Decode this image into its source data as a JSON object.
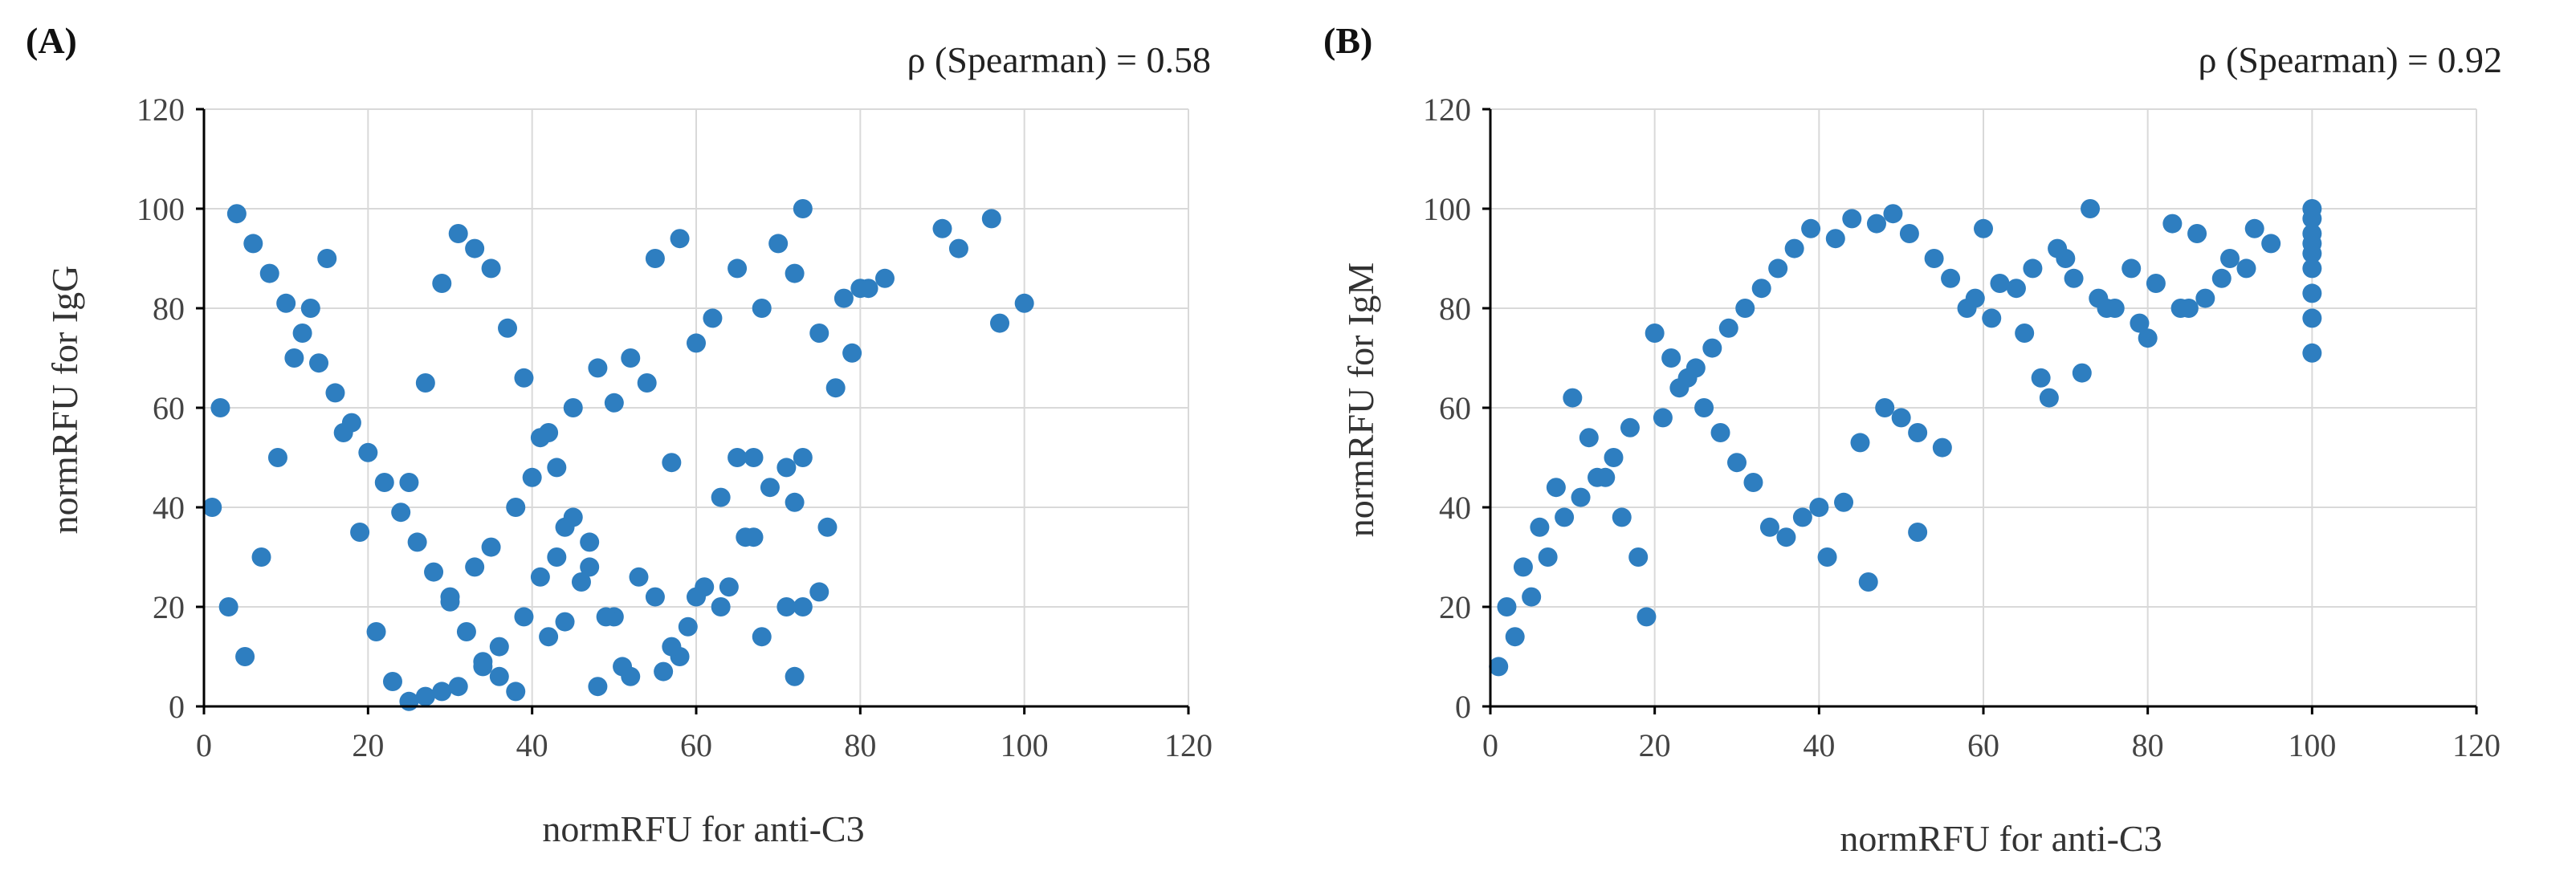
{
  "chart_data": [
    {
      "type": "scatter",
      "panel_label": "(A)",
      "annotation": "ρ (Spearman) = 0.58",
      "xlabel": "normRFU for anti-C3",
      "ylabel": "normRFU for IgG",
      "xlim": [
        0,
        120
      ],
      "ylim": [
        0,
        120
      ],
      "xticks": [
        "0",
        "20",
        "40",
        "60",
        "80",
        "100",
        "120"
      ],
      "yticks": [
        "0",
        "20",
        "40",
        "60",
        "80",
        "100",
        "120"
      ],
      "grid": true,
      "marker_color": "#2E7EC0",
      "points": {
        "x": [
          97,
          100,
          92,
          90,
          96,
          83,
          80,
          78,
          72,
          68,
          75,
          62,
          65,
          70,
          73,
          58,
          55,
          52,
          60,
          48,
          45,
          42,
          40,
          38,
          35,
          33,
          30,
          50,
          54,
          57,
          63,
          67,
          72,
          76,
          44,
          47,
          43,
          41,
          39,
          36,
          34,
          31,
          29,
          27,
          25,
          72,
          73,
          71,
          68,
          66,
          64,
          60,
          58,
          56,
          52,
          50,
          48,
          46,
          44,
          42,
          38,
          36,
          34,
          32,
          30,
          28,
          26,
          24,
          22,
          20,
          18,
          16,
          14,
          12,
          10,
          8,
          6,
          4,
          2,
          1,
          3,
          5,
          7,
          9,
          11,
          13,
          15,
          17,
          19,
          21,
          23,
          25,
          27,
          29,
          31,
          33,
          35,
          37,
          39,
          41,
          43,
          45,
          47,
          49,
          51,
          53,
          55,
          57,
          59,
          61,
          63,
          65,
          67,
          69,
          71,
          73,
          75,
          77,
          79,
          81
        ],
        "y": [
          77,
          81,
          92,
          96,
          98,
          86,
          84,
          82,
          87,
          80,
          75,
          78,
          88,
          93,
          100,
          94,
          90,
          70,
          73,
          68,
          60,
          55,
          46,
          40,
          32,
          28,
          22,
          61,
          65,
          49,
          42,
          50,
          41,
          36,
          36,
          33,
          30,
          26,
          18,
          12,
          8,
          4,
          3,
          2,
          1,
          6,
          50,
          20,
          14,
          34,
          24,
          22,
          10,
          7,
          6,
          18,
          4,
          25,
          17,
          14,
          3,
          6,
          9,
          15,
          21,
          27,
          33,
          39,
          45,
          51,
          57,
          63,
          69,
          75,
          81,
          87,
          93,
          99,
          60,
          40,
          20,
          10,
          30,
          50,
          70,
          80,
          90,
          55,
          35,
          15,
          5,
          45,
          65,
          85,
          95,
          92,
          88,
          76,
          66,
          54,
          48,
          38,
          28,
          18,
          8,
          26,
          22,
          12,
          16,
          24,
          20,
          50,
          34,
          44,
          48,
          20,
          23,
          64,
          71,
          84
        ]
      }
    },
    {
      "type": "scatter",
      "panel_label": "(B)",
      "annotation": "ρ (Spearman) = 0.92",
      "xlabel": "normRFU for anti-C3",
      "ylabel": "normRFU for IgM",
      "xlim": [
        0,
        120
      ],
      "ylim": [
        0,
        120
      ],
      "xticks": [
        "0",
        "20",
        "40",
        "60",
        "80",
        "100",
        "120"
      ],
      "yticks": [
        "0",
        "20",
        "40",
        "60",
        "80",
        "100",
        "120"
      ],
      "grid": true,
      "marker_color": "#2E7EC0",
      "points": {
        "x": [
          100,
          100,
          100,
          100,
          100,
          100,
          100,
          100,
          100,
          95,
          93,
          90,
          86,
          85,
          83,
          80,
          78,
          75,
          73,
          72,
          70,
          68,
          67,
          65,
          62,
          60,
          58,
          55,
          52,
          50,
          48,
          45,
          43,
          41,
          46,
          52,
          40,
          38,
          36,
          34,
          32,
          30,
          28,
          26,
          24,
          22,
          20,
          19,
          18,
          16,
          14,
          12,
          10,
          8,
          6,
          4,
          2,
          1,
          3,
          5,
          7,
          9,
          11,
          13,
          15,
          17,
          21,
          23,
          25,
          27,
          29,
          31,
          33,
          35,
          37,
          39,
          42,
          44,
          47,
          49,
          51,
          54,
          56,
          59,
          61,
          64,
          66,
          69,
          71,
          74,
          76,
          79,
          81,
          84,
          87,
          89,
          92
        ],
        "y": [
          71,
          78,
          83,
          88,
          91,
          93,
          95,
          98,
          100,
          93,
          96,
          90,
          95,
          80,
          97,
          74,
          88,
          80,
          100,
          67,
          90,
          62,
          66,
          75,
          85,
          96,
          80,
          52,
          55,
          58,
          60,
          53,
          41,
          30,
          25,
          35,
          40,
          38,
          34,
          36,
          45,
          49,
          55,
          60,
          66,
          70,
          75,
          18,
          30,
          38,
          46,
          54,
          62,
          44,
          36,
          28,
          20,
          8,
          14,
          22,
          30,
          38,
          42,
          46,
          50,
          56,
          58,
          64,
          68,
          72,
          76,
          80,
          84,
          88,
          92,
          96,
          94,
          98,
          97,
          99,
          95,
          90,
          86,
          82,
          78,
          84,
          88,
          92,
          86,
          82,
          80,
          77,
          85,
          80,
          82,
          86,
          88
        ]
      }
    }
  ]
}
